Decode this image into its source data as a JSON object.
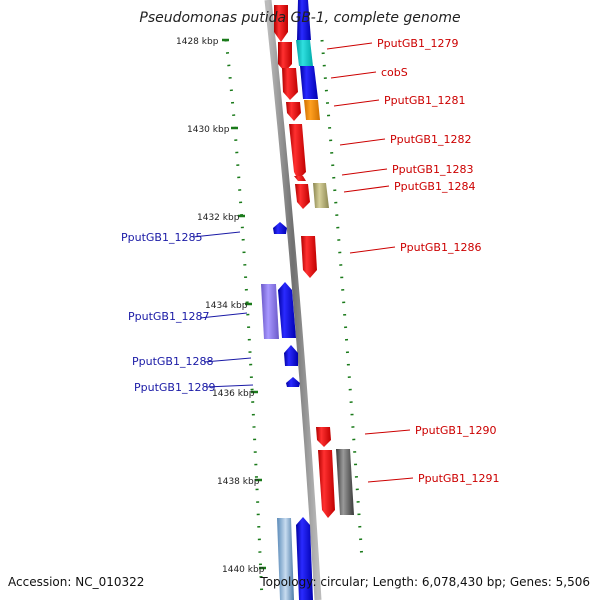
{
  "title": "Pseudomonas putida GB-1, complete genome",
  "footer": {
    "accession": "Accession: NC_010322",
    "summary": "Topology: circular; Length: 6,078,430 bp; Genes: 5,506"
  },
  "ticks": [
    "1428 kbp",
    "1430 kbp",
    "1432 kbp",
    "1434 kbp",
    "1436 kbp",
    "1438 kbp",
    "1440 kbp"
  ],
  "genes_right": [
    "PputGB1_1279",
    "cobS",
    "PputGB1_1281",
    "PputGB1_1282",
    "PputGB1_1283",
    "PputGB1_1284",
    "PputGB1_1286",
    "PputGB1_1290",
    "PputGB1_1291"
  ],
  "genes_left": [
    "PputGB1_1285",
    "PputGB1_1287",
    "PputGB1_1288",
    "PputGB1_1289"
  ],
  "colors": {
    "forward_gene": "#ff0000",
    "reverse_gene": "#0000ff",
    "label_right": "#cc0000",
    "label_left": "#1a1aa6",
    "tick": "#1a7a1a",
    "backbone": "#888888"
  }
}
